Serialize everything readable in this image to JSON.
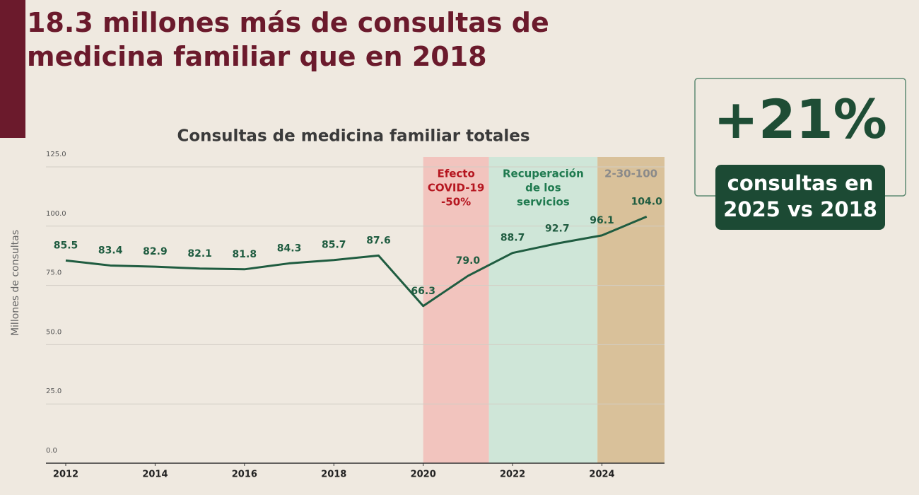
{
  "header": {
    "title": "18.3 millones más de consultas de medicina familiar que en 2018"
  },
  "callout": {
    "value": "+21%",
    "text": [
      "consultas en",
      "2025 vs 2018"
    ]
  },
  "chart_data": {
    "type": "line",
    "title": "Consultas de medicina familiar totales",
    "y_label": "Millones de consultas",
    "x": [
      2012,
      2013,
      2014,
      2015,
      2016,
      2017,
      2018,
      2019,
      2020,
      2021,
      2022,
      2023,
      2024,
      2025
    ],
    "values": [
      85.5,
      83.4,
      82.9,
      82.1,
      81.8,
      84.3,
      85.7,
      87.6,
      66.3,
      79.0,
      88.7,
      92.7,
      96.1,
      104.0
    ],
    "value_labels": [
      "85.5",
      "83.4",
      "82.9",
      "82.1",
      "81.8",
      "84.3",
      "85.7",
      "87.6",
      "66.3",
      "79.0",
      "88.7",
      "92.7",
      "96.1",
      "104.0"
    ],
    "color": "#1f5c40",
    "xlim": [
      2012,
      2025.4
    ],
    "xticks": [
      2012,
      2014,
      2016,
      2018,
      2020,
      2022,
      2024
    ],
    "ylim": [
      0,
      125
    ],
    "yticks": [
      {
        "value": 0,
        "label": "0.0"
      },
      {
        "value": 25,
        "label": "25.0"
      },
      {
        "value": 50,
        "label": "50.0"
      },
      {
        "value": 75,
        "label": "75.0"
      },
      {
        "value": 100,
        "label": "100.0"
      },
      {
        "value": 125,
        "label": "125.0"
      }
    ],
    "grid": true,
    "regions": [
      {
        "label": [
          "Efecto",
          "COVID-19",
          "-50%"
        ],
        "start": 2020,
        "end": 2021.47,
        "color": "#f2c4be",
        "label_color": "#b5151f"
      },
      {
        "label": [
          "Recuperación",
          "de los",
          "servicios"
        ],
        "start": 2021.47,
        "end": 2023.9,
        "color": "#cfe6d8",
        "label_color": "#1f7a4f"
      },
      {
        "label": [
          "2-30-100"
        ],
        "start": 2023.9,
        "end": 2025.4,
        "color": "#d9c19a",
        "label_color": "#8a8a8a"
      }
    ]
  }
}
